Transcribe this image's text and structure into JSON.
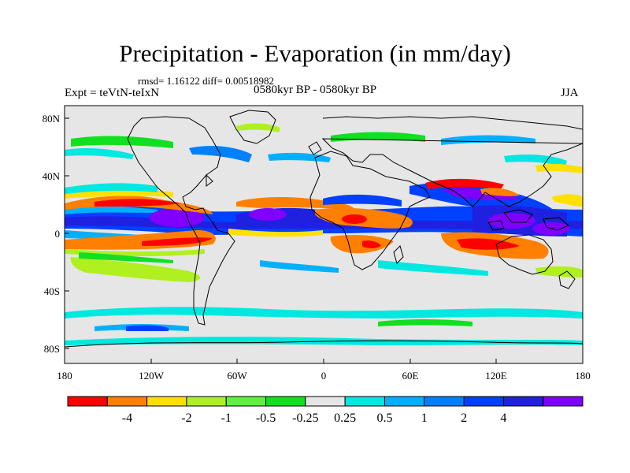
{
  "title": "Precipitation - Evaporation (in mm/day)",
  "stats": "rmsd= 1.16122 diff= 0.00518982",
  "expt": "Expt = teVtN-teIxN",
  "period": "0580kyr BP - 0580kyr BP",
  "season": "JJA",
  "map": {
    "lat_ticks": [
      "80N",
      "40N",
      "0",
      "40S",
      "80S"
    ],
    "lon_ticks": [
      "180",
      "120W",
      "60W",
      "0",
      "60E",
      "120E",
      "180"
    ],
    "background_color": "#e6e6e6"
  },
  "colorbar": {
    "colors": [
      "#ff0000",
      "#ff8000",
      "#ffe000",
      "#b0f020",
      "#60f040",
      "#10e020",
      "#e6e6e6",
      "#00e8e0",
      "#00b0ff",
      "#0080ff",
      "#0040ff",
      "#2020e0",
      "#8000ff"
    ],
    "labels": [
      "-4",
      "-2",
      "-1",
      "-0.5",
      "-0.25",
      "0.25",
      "0.5",
      "1",
      "2",
      "4"
    ]
  }
}
